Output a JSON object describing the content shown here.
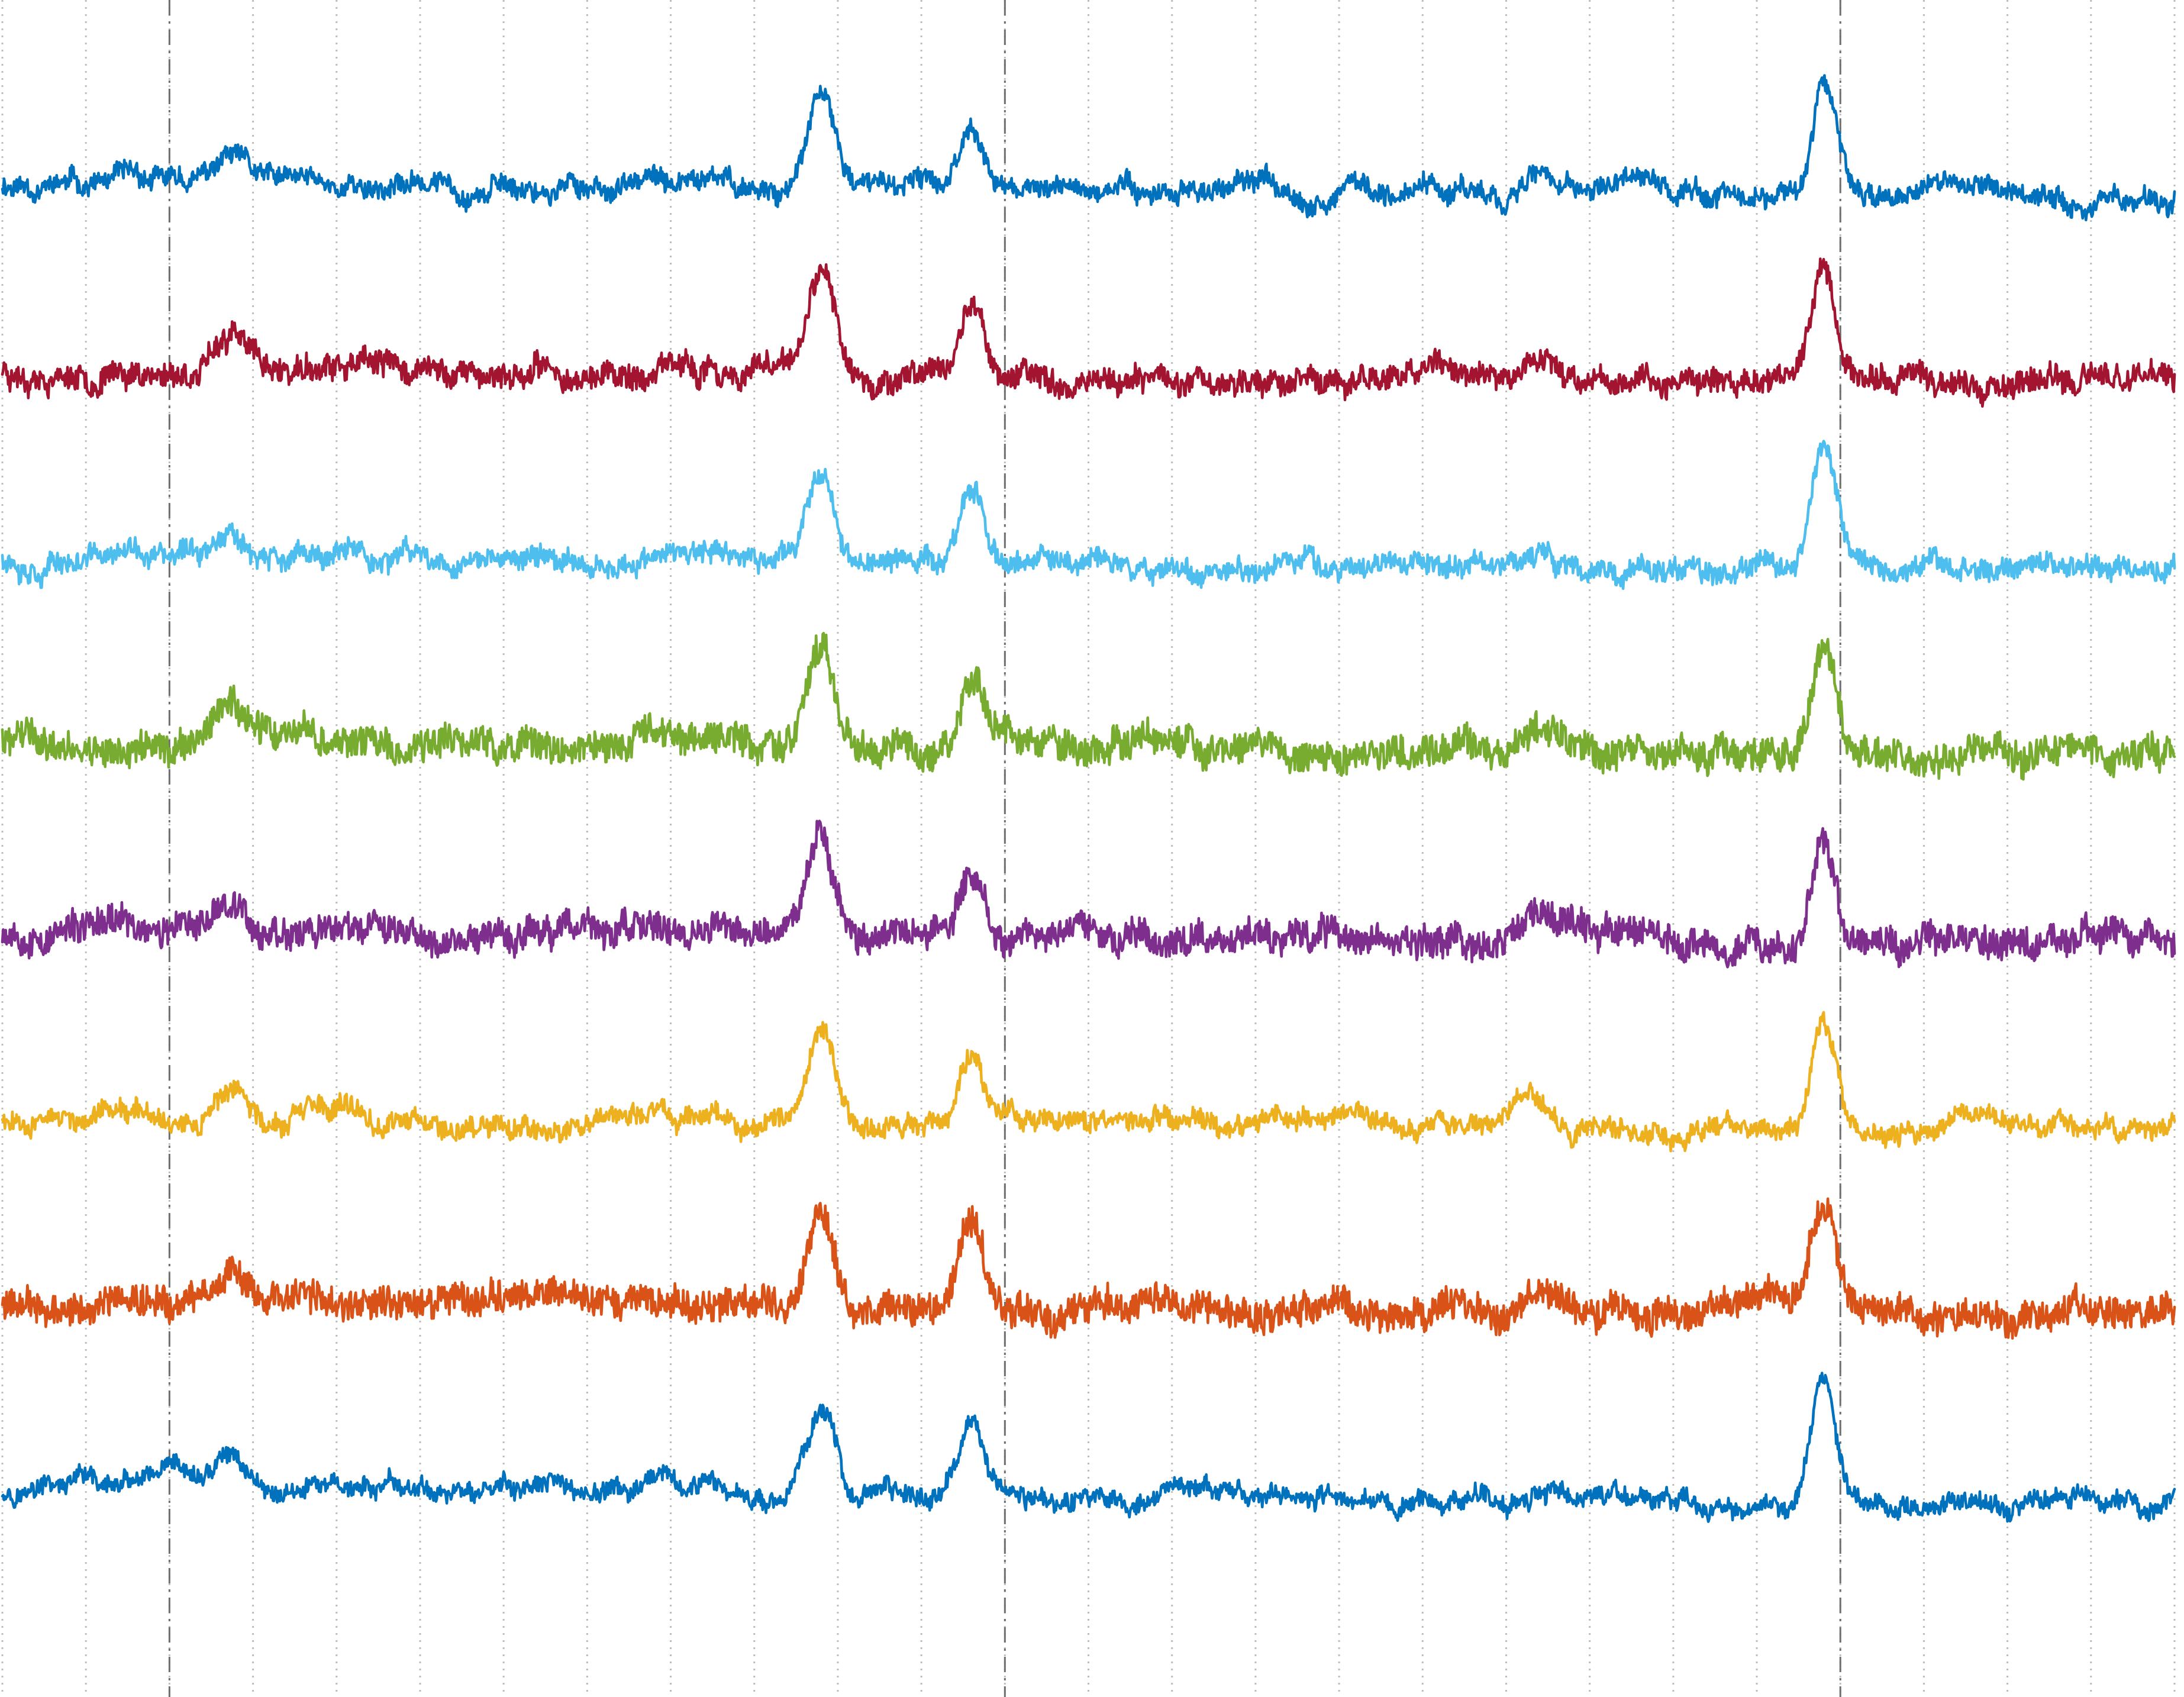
{
  "chart_data": {
    "type": "line",
    "title": "",
    "xlabel": "",
    "ylabel": "",
    "xlim": [
      0,
      1300
    ],
    "grid_minor": true,
    "minor_gridlines": [
      0,
      50,
      100,
      150,
      200,
      250,
      300,
      350,
      400,
      450,
      500,
      550,
      600,
      650,
      700,
      750,
      800,
      850,
      900,
      950,
      1000,
      1050,
      1100,
      1150,
      1200,
      1250,
      1300
    ],
    "major_gridlines": [
      100,
      600,
      1100
    ],
    "peaks_x": [
      137,
      490,
      580,
      918,
      1090
    ],
    "series": [
      {
        "color": "#0072BD",
        "baseline_start": 0.0,
        "baseline_end": 0.15,
        "noise": 0.55,
        "peaks": [
          0.45,
          1.55,
          1.2,
          0.35,
          1.9
        ],
        "seed": 11
      },
      {
        "color": "#A2142F",
        "baseline_start": 0.0,
        "baseline_end": 0.22,
        "noise": 0.7,
        "peaks": [
          0.6,
          1.6,
          1.35,
          0.45,
          2.0
        ],
        "seed": 23
      },
      {
        "color": "#4DBEEE",
        "baseline_start": 0.0,
        "baseline_end": 0.25,
        "noise": 0.6,
        "peaks": [
          0.6,
          1.7,
          1.35,
          0.4,
          2.0
        ],
        "seed": 37
      },
      {
        "color": "#77AC30",
        "baseline_start": 0.0,
        "baseline_end": 0.2,
        "noise": 0.95,
        "peaks": [
          0.7,
          1.75,
          1.25,
          0.3,
          2.0
        ],
        "seed": 41
      },
      {
        "color": "#7E2F8E",
        "baseline_start": 0.0,
        "baseline_end": 0.22,
        "noise": 0.9,
        "peaks": [
          0.6,
          1.55,
          1.25,
          0.35,
          1.8
        ],
        "seed": 53
      },
      {
        "color": "#EDB120",
        "baseline_start": 0.0,
        "baseline_end": 0.22,
        "noise": 0.55,
        "peaks": [
          0.55,
          1.6,
          1.15,
          0.45,
          1.85
        ],
        "seed": 67
      },
      {
        "color": "#D95319",
        "baseline_start": 0.0,
        "baseline_end": 0.18,
        "noise": 0.95,
        "peaks": [
          0.55,
          1.75,
          1.5,
          0.4,
          2.0
        ],
        "seed": 79
      },
      {
        "color": "#0072BD",
        "baseline_start": 0.0,
        "baseline_end": 0.3,
        "noise": 0.5,
        "peaks": [
          0.55,
          1.6,
          1.3,
          0.3,
          1.85
        ],
        "seed": 97
      }
    ]
  }
}
